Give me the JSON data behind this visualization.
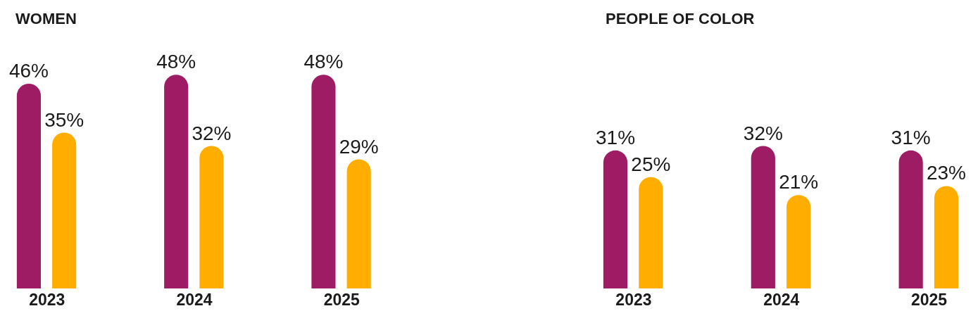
{
  "chart_data": [
    {
      "type": "bar",
      "title": "WOMEN",
      "categories": [
        "2023",
        "2024",
        "2025"
      ],
      "series": [
        {
          "color": "#9e1c63",
          "values": [
            46,
            48,
            48
          ],
          "value_labels": [
            "46%",
            "48%",
            "48%"
          ]
        },
        {
          "color": "#ffae00",
          "values": [
            35,
            32,
            29
          ],
          "value_labels": [
            "35%",
            "32%",
            "29%"
          ]
        }
      ]
    },
    {
      "type": "bar",
      "title": "PEOPLE OF COLOR",
      "categories": [
        "2023",
        "2024",
        "2025"
      ],
      "series": [
        {
          "color": "#9e1c63",
          "values": [
            31,
            32,
            31
          ],
          "value_labels": [
            "31%",
            "32%",
            "31%"
          ]
        },
        {
          "color": "#ffae00",
          "values": [
            25,
            21,
            23
          ],
          "value_labels": [
            "25%",
            "21%",
            "23%"
          ]
        }
      ]
    }
  ]
}
